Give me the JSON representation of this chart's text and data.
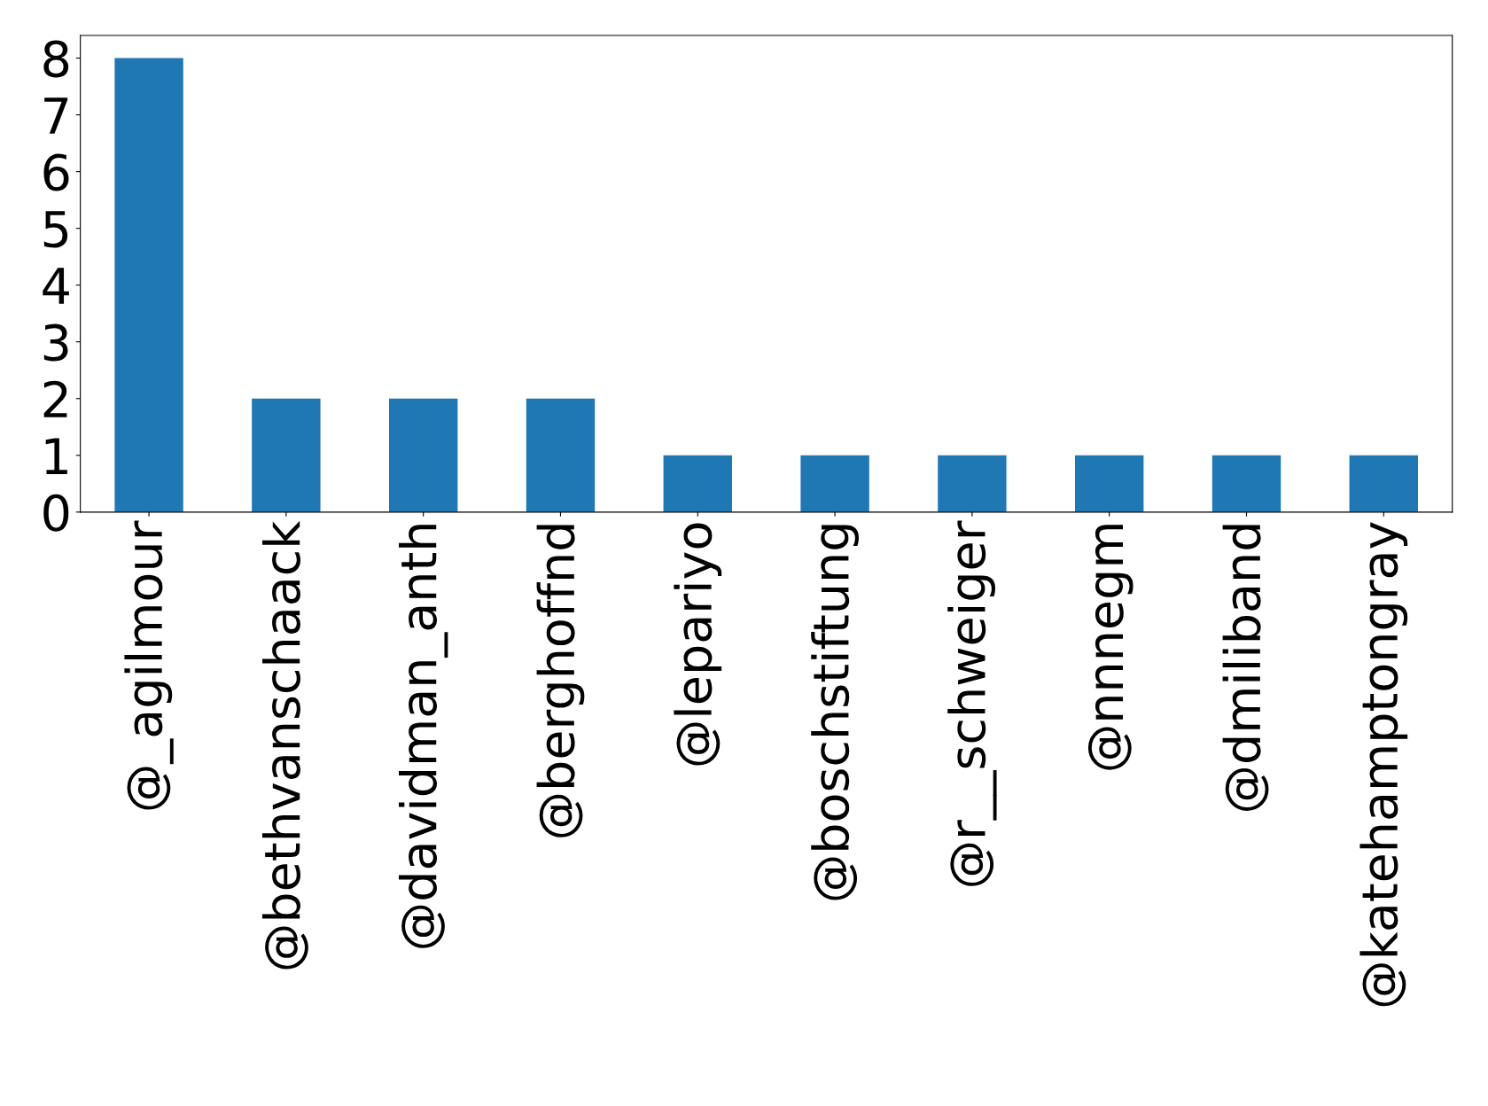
{
  "chart_data": {
    "type": "bar",
    "categories": [
      "@_agilmour",
      "@bethvanschaack",
      "@davidman_anth",
      "@berghoffnd",
      "@lepariyo",
      "@boschstiftung",
      "@r__schweiger",
      "@nnnegm",
      "@dmiliband",
      "@katehamptongray"
    ],
    "values": [
      8,
      2,
      2,
      2,
      1,
      1,
      1,
      1,
      1,
      1
    ],
    "color": "#1f77b4",
    "ylim": [
      0,
      8.4
    ],
    "yticks": [
      0,
      1,
      2,
      3,
      4,
      5,
      6,
      7,
      8
    ],
    "grid": false,
    "legend": false
  }
}
